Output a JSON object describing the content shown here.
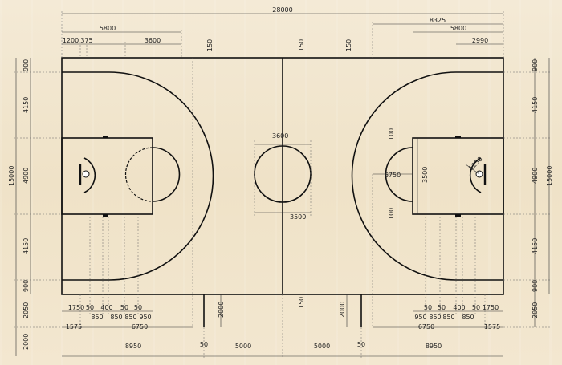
{
  "dims": {
    "top_overall": "28000",
    "left_5800": "5800",
    "left_1200": "1200",
    "left_375": "375",
    "left_3600": "3600",
    "right_8325": "8325",
    "right_5800": "5800",
    "right_2990": "2990",
    "tick_150_a": "150",
    "tick_150_b": "150",
    "tick_150_c": "150",
    "tick_150_bottom": "150",
    "left_v_900_top": "900",
    "left_v_4150_top": "4150",
    "left_v_4900": "4900",
    "left_v_15000": "15000",
    "left_v_4150_bot": "4150",
    "left_v_900_bot": "900",
    "left_v_2050": "2050",
    "left_v_2000": "2000",
    "right_v_900_top": "900",
    "right_v_4150_top": "4150",
    "right_v_4900": "4900",
    "right_v_15000": "15000",
    "right_v_4150_bot": "4150",
    "right_v_900_bot": "900",
    "right_v_2050": "2050",
    "center_3600": "3600",
    "center_3500": "3500",
    "right_6750": "6750",
    "right_3500": "3500",
    "right_100_top": "100",
    "right_100_bot": "100",
    "right_1250": "1250",
    "bottom_2000_left": "2000",
    "bottom_2000_right": "2000",
    "bl_1750": "1750",
    "bl_50a": "50",
    "bl_400": "400",
    "bl_50b": "50",
    "bl_50c": "50",
    "bl_850a": "850",
    "bl_850b": "850",
    "bl_850c": "850",
    "bl_950": "950",
    "bl_1575": "1575",
    "bl_6750": "6750",
    "bl_8950": "8950",
    "b_50_left": "50",
    "b_5000_left": "5000",
    "b_5000_right": "5000",
    "b_50_right": "50",
    "br_50a": "50",
    "br_50b": "50",
    "br_400": "400",
    "br_50c": "50",
    "br_1750": "1750",
    "br_950": "950",
    "br_850a": "850",
    "br_850b": "850",
    "br_850c": "850",
    "br_6750": "6750",
    "br_1575": "1575",
    "br_8950": "8950"
  }
}
